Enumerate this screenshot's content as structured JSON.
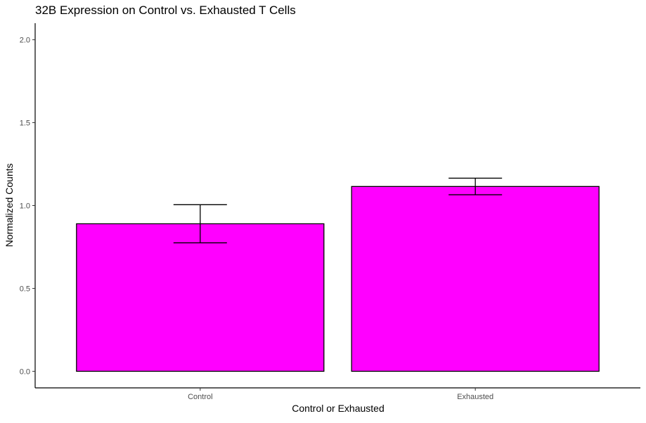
{
  "chart_data": {
    "type": "bar",
    "title": "32B Expression on Control vs. Exhausted T Cells",
    "xlabel": "Control or Exhausted",
    "ylabel": "Normalized Counts",
    "categories": [
      "Control",
      "Exhausted"
    ],
    "values": [
      0.89,
      1.115
    ],
    "error_bars": [
      {
        "low": 0.775,
        "high": 1.005
      },
      {
        "low": 1.065,
        "high": 1.165
      }
    ],
    "ylim": [
      -0.1,
      2.1
    ],
    "yticks": [
      "0.0",
      "0.5",
      "1.0",
      "1.5",
      "2.0"
    ],
    "ytick_values": [
      0,
      0.5,
      1.0,
      1.5,
      2.0
    ],
    "grid": false,
    "legend": "none",
    "colors": {
      "bar_fill": "#FF00FF",
      "bar_stroke": "#000000",
      "axis": "#000000",
      "tick_text": "#4d4d4d"
    }
  }
}
